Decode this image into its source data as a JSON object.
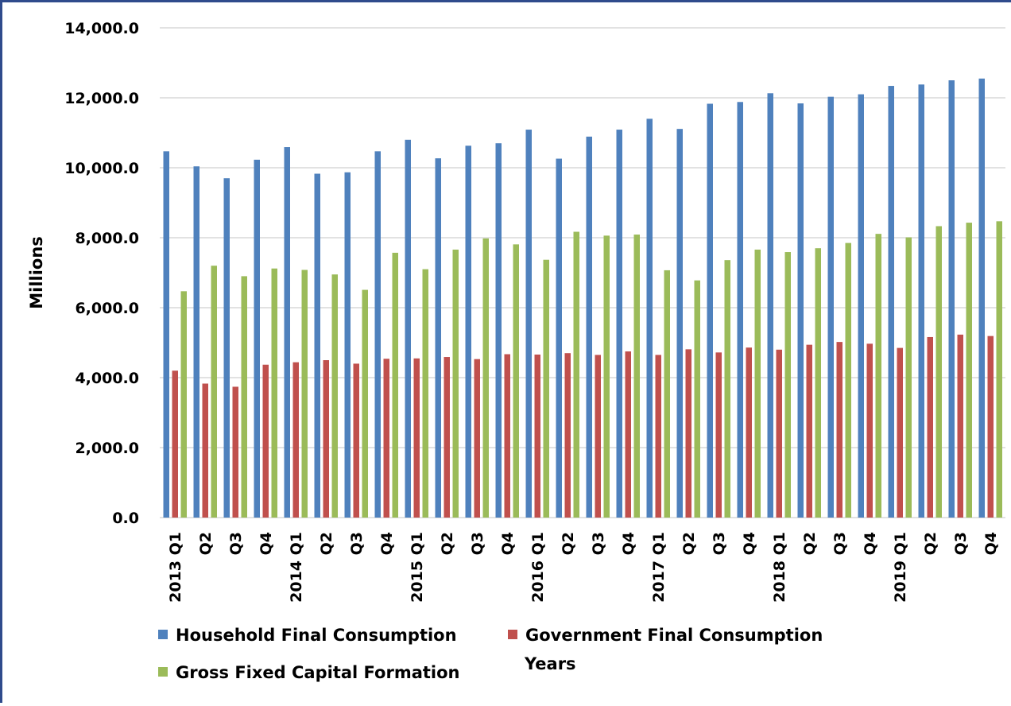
{
  "chart_data": {
    "type": "bar",
    "title": "",
    "ylabel": "Millions",
    "xlabel": "Years",
    "ylim": [
      0,
      14000
    ],
    "yticks": [
      "0.0",
      "2,000.0",
      "4,000.0",
      "6,000.0",
      "8,000.0",
      "10,000.0",
      "12,000.0",
      "14,000.0"
    ],
    "grid": true,
    "legend_position": "bottom",
    "categories": [
      "2013 Q1",
      "Q2",
      "Q3",
      "Q4",
      "2014 Q1",
      "Q2",
      "Q3",
      "Q4",
      "2015 Q1",
      "Q2",
      "Q3",
      "Q4",
      "2016 Q1",
      "Q2",
      "Q3",
      "Q4",
      "2017 Q1",
      "Q2",
      "Q3",
      "Q4",
      "2018 Q1",
      "Q2",
      "Q3",
      "Q4",
      "2019 Q1",
      "Q2",
      "Q3",
      "Q4"
    ],
    "series": [
      {
        "name": "Household Final Consumption",
        "color": "#4f81bd",
        "values": [
          10470,
          10040,
          9700,
          10230,
          10590,
          9830,
          9870,
          10470,
          10800,
          10270,
          10630,
          10700,
          11090,
          10260,
          10890,
          11090,
          11400,
          11110,
          11830,
          11880,
          12130,
          11840,
          12030,
          12100,
          12340,
          12380,
          12500,
          12550
        ]
      },
      {
        "name": "Government Final Consumption",
        "color": "#c0504d",
        "values": [
          4200,
          3830,
          3740,
          4370,
          4440,
          4500,
          4400,
          4540,
          4550,
          4590,
          4530,
          4670,
          4660,
          4700,
          4650,
          4750,
          4650,
          4810,
          4720,
          4860,
          4800,
          4940,
          5020,
          4970,
          4850,
          5160,
          5230,
          5190
        ]
      },
      {
        "name": "Gross Fixed Capital Formation",
        "color": "#9bbb59",
        "values": [
          6470,
          7200,
          6900,
          7120,
          7080,
          6950,
          6510,
          7570,
          7100,
          7660,
          7980,
          7810,
          7370,
          8170,
          8060,
          8090,
          7070,
          6780,
          7360,
          7660,
          7590,
          7700,
          7850,
          8110,
          8010,
          8330,
          8430,
          8470
        ]
      }
    ]
  }
}
